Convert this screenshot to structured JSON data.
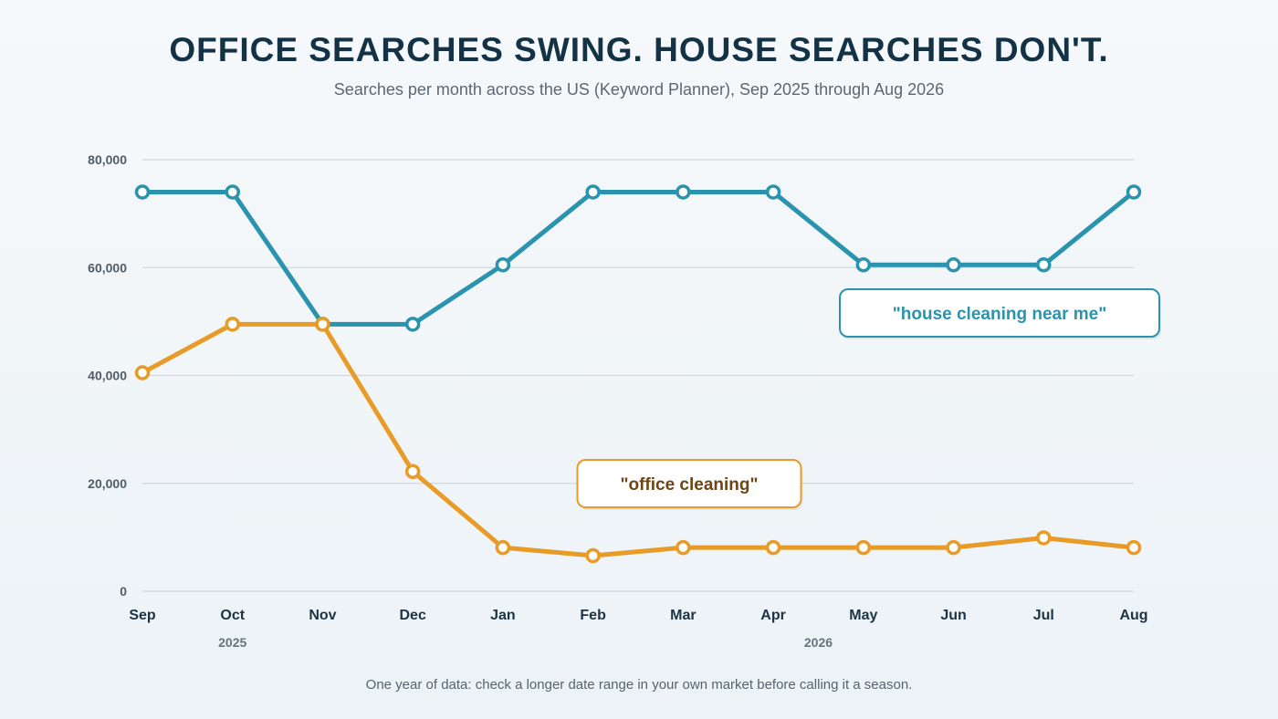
{
  "header": {
    "title": "OFFICE SEARCHES SWING. HOUSE SEARCHES DON'T.",
    "subtitle": "Searches per month across the US (Keyword Planner), Sep 2025 through Aug 2026"
  },
  "footer": {
    "note": "One year of data: check a longer date range in your own market before calling it a season."
  },
  "chart_data": {
    "type": "line",
    "title": "OFFICE SEARCHES SWING. HOUSE SEARCHES DON'T.",
    "subtitle": "Searches per month across the US (Keyword Planner), Sep 2025 through Aug 2026",
    "categories": [
      "Sep",
      "Oct",
      "Nov",
      "Dec",
      "Jan",
      "Feb",
      "Mar",
      "Apr",
      "May",
      "Jun",
      "Jul",
      "Aug"
    ],
    "year_labels": [
      {
        "label": "2025",
        "category": "Oct"
      },
      {
        "label": "2026",
        "category": "Mar–Apr"
      }
    ],
    "ylim": [
      0,
      80000
    ],
    "yticks": [
      0,
      20000,
      40000,
      60000,
      80000
    ],
    "ytick_labels": [
      "0",
      "20,000",
      "40,000",
      "60,000",
      "80,000"
    ],
    "grid": true,
    "series": [
      {
        "name": "\"house cleaning near me\"",
        "color": "#2a93ad",
        "label_color": "#2a93ad",
        "values": [
          74000,
          74000,
          49500,
          49500,
          60500,
          74000,
          74000,
          74000,
          60500,
          60500,
          60500,
          74000
        ]
      },
      {
        "name": "\"office cleaning\"",
        "color": "#e89b26",
        "label_color": "#6e4513",
        "values": [
          40500,
          49500,
          49500,
          22200,
          8100,
          6600,
          8100,
          8100,
          8100,
          8100,
          9900,
          8100
        ]
      }
    ]
  }
}
